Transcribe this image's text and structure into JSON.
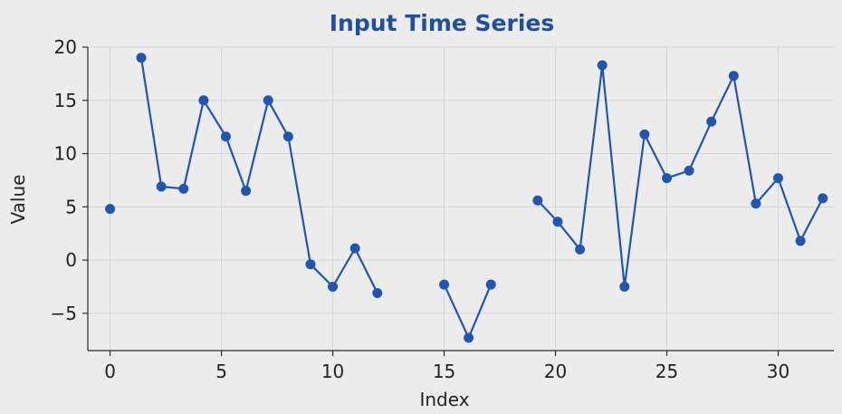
{
  "chart_data": {
    "type": "line",
    "title": "Input Time Series",
    "xlabel": "Index",
    "ylabel": "Value",
    "xlim": [
      -1,
      32.5
    ],
    "ylim": [
      -8.5,
      20
    ],
    "xticks": [
      0,
      5,
      10,
      15,
      20,
      25,
      30
    ],
    "yticks": [
      -5,
      0,
      5,
      10,
      15,
      20
    ],
    "grid": true,
    "colors": {
      "series": "#1f56b4",
      "title": "#1f4fa3"
    },
    "series": [
      {
        "x": [
          0,
          1.4,
          2.3,
          3.3,
          4.2,
          5.2,
          6.1,
          7.1,
          8.0,
          9.0,
          10.0,
          11.0,
          12.0,
          15.0,
          16.1,
          17.1,
          19.2,
          20.1,
          21.1,
          22.1,
          23.1,
          24.0,
          25.0,
          26.0,
          27.0,
          28.0,
          29.0,
          30.0,
          31.0,
          32.0
        ],
        "y": [
          4.8,
          19.0,
          6.9,
          6.7,
          15.0,
          11.6,
          6.5,
          15.0,
          11.6,
          -0.4,
          -2.5,
          1.1,
          -3.1,
          -2.3,
          -7.3,
          -2.3,
          5.6,
          3.6,
          1.0,
          18.3,
          -2.5,
          11.8,
          7.7,
          8.4,
          13.0,
          17.3,
          5.3,
          7.7,
          1.8,
          5.8
        ],
        "segments": [
          [
            0
          ],
          [
            1,
            12
          ],
          [
            13,
            15
          ],
          [
            16,
            29
          ]
        ]
      }
    ]
  }
}
